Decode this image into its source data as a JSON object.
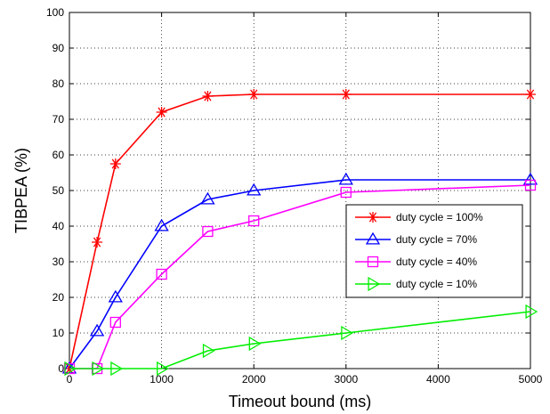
{
  "chart_data": {
    "type": "line",
    "xlabel": "Timeout bound (ms)",
    "ylabel": "TIBPEA (%)",
    "xlim": [
      0,
      5000
    ],
    "ylim": [
      0,
      100
    ],
    "xticks": [
      0,
      1000,
      2000,
      3000,
      4000,
      5000
    ],
    "yticks": [
      0,
      10,
      20,
      30,
      40,
      50,
      60,
      70,
      80,
      90,
      100
    ],
    "grid": true,
    "legend_position": "right",
    "series": [
      {
        "name": "duty cycle = 100%",
        "color": "#ff0000",
        "marker": "asterisk",
        "x": [
          0,
          300,
          500,
          1000,
          1500,
          2000,
          3000,
          5000
        ],
        "y": [
          0,
          35.5,
          57.5,
          72,
          76.5,
          77,
          77,
          77
        ]
      },
      {
        "name": "duty cycle = 70%",
        "color": "#0000ff",
        "marker": "triangle-up",
        "x": [
          0,
          300,
          500,
          1000,
          1500,
          2000,
          3000,
          5000
        ],
        "y": [
          0,
          10.5,
          20,
          40,
          47.5,
          50,
          53,
          53
        ]
      },
      {
        "name": "duty cycle = 40%",
        "color": "#ff00ff",
        "marker": "square",
        "x": [
          0,
          300,
          500,
          1000,
          1500,
          2000,
          3000,
          5000
        ],
        "y": [
          0,
          0,
          13,
          26.5,
          38.5,
          41.5,
          49.5,
          51.5
        ]
      },
      {
        "name": "duty cycle = 10%",
        "color": "#00ee00",
        "marker": "triangle-right",
        "x": [
          0,
          300,
          500,
          1000,
          1500,
          2000,
          3000,
          5000
        ],
        "y": [
          0,
          0,
          0,
          0,
          5,
          7,
          10,
          16
        ]
      }
    ]
  }
}
